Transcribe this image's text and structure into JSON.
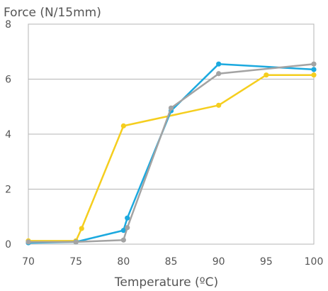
{
  "chart_data": {
    "type": "line",
    "title": "",
    "ylabel": "Force (N/15mm)",
    "xlabel": "Temperature (ºC)",
    "xlim": [
      70,
      100
    ],
    "ylim": [
      0,
      8
    ],
    "x_ticks": [
      "70",
      "75",
      "80",
      "85",
      "90",
      "95",
      "100"
    ],
    "y_ticks": [
      "0",
      "2",
      "4",
      "6",
      "8"
    ],
    "grid": "horizontal",
    "legend": "none",
    "series": [
      {
        "color": "#f5ce1e",
        "points": [
          [
            70,
            0.12
          ],
          [
            75,
            0.12
          ],
          [
            75.6,
            0.57
          ],
          [
            80,
            4.3
          ],
          [
            90,
            5.05
          ],
          [
            95,
            6.15
          ],
          [
            100,
            6.15
          ]
        ]
      },
      {
        "color": "#1ba9df",
        "points": [
          [
            70,
            0.05
          ],
          [
            75,
            0.08
          ],
          [
            80,
            0.5
          ],
          [
            80.4,
            0.95
          ],
          [
            85,
            4.85
          ],
          [
            90,
            6.55
          ],
          [
            100,
            6.35
          ]
        ]
      },
      {
        "color": "#a3a3a3",
        "points": [
          [
            70,
            0.08
          ],
          [
            75,
            0.08
          ],
          [
            80,
            0.15
          ],
          [
            80.4,
            0.6
          ],
          [
            85,
            4.95
          ],
          [
            90,
            6.2
          ],
          [
            100,
            6.55
          ]
        ]
      }
    ]
  }
}
